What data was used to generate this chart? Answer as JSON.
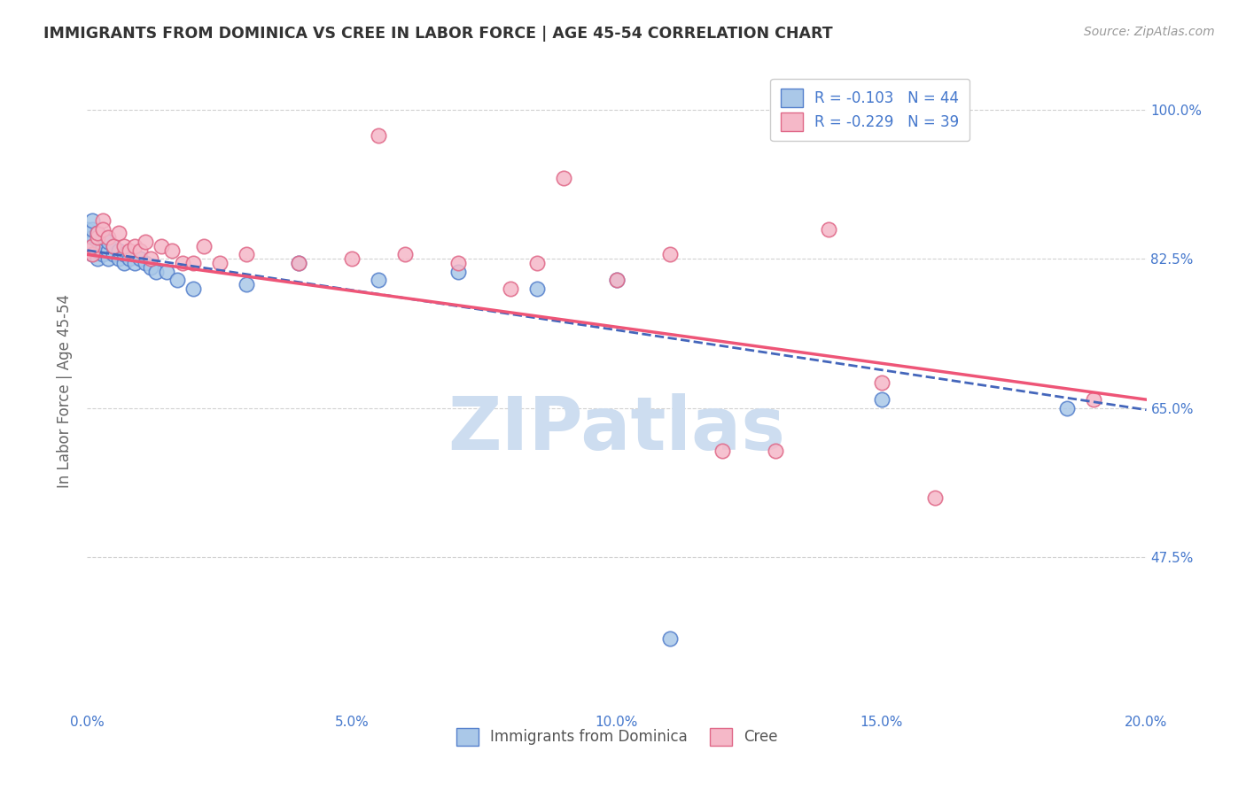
{
  "title": "IMMIGRANTS FROM DOMINICA VS CREE IN LABOR FORCE | AGE 45-54 CORRELATION CHART",
  "source": "Source: ZipAtlas.com",
  "ylabel": "In Labor Force | Age 45-54",
  "xmin": 0.0,
  "xmax": 0.2,
  "ymin": 0.295,
  "ymax": 1.045,
  "yticks": [
    0.475,
    0.65,
    0.825,
    1.0
  ],
  "ytick_labels": [
    "47.5%",
    "65.0%",
    "82.5%",
    "100.0%"
  ],
  "xticks": [
    0.0,
    0.05,
    0.1,
    0.15,
    0.2
  ],
  "xtick_labels": [
    "0.0%",
    "5.0%",
    "10.0%",
    "15.0%",
    "20.0%"
  ],
  "legend_labels_bottom": [
    "Immigrants from Dominica",
    "Cree"
  ],
  "dominica_color": "#aac8e8",
  "dominica_edge": "#5580cc",
  "cree_color": "#f5b8c8",
  "cree_edge": "#e06888",
  "dominica_line_color": "#4466bb",
  "cree_line_color": "#ee5577",
  "dominica_R": -0.103,
  "dominica_N": 44,
  "cree_R": -0.229,
  "cree_N": 39,
  "dom_line_x0": 0.0,
  "dom_line_y0": 0.835,
  "dom_line_x1": 0.2,
  "dom_line_y1": 0.648,
  "cree_line_x0": 0.0,
  "cree_line_y0": 0.83,
  "cree_line_x1": 0.2,
  "cree_line_y1": 0.66,
  "dominica_x": [
    0.0,
    0.0,
    0.0,
    0.0,
    0.0,
    0.001,
    0.001,
    0.001,
    0.001,
    0.001,
    0.002,
    0.002,
    0.002,
    0.002,
    0.003,
    0.003,
    0.003,
    0.004,
    0.004,
    0.004,
    0.005,
    0.005,
    0.006,
    0.006,
    0.007,
    0.007,
    0.008,
    0.009,
    0.01,
    0.011,
    0.012,
    0.013,
    0.015,
    0.017,
    0.02,
    0.03,
    0.04,
    0.055,
    0.07,
    0.085,
    0.1,
    0.11,
    0.15,
    0.185
  ],
  "dominica_y": [
    0.835,
    0.84,
    0.845,
    0.855,
    0.86,
    0.83,
    0.84,
    0.85,
    0.86,
    0.87,
    0.825,
    0.835,
    0.845,
    0.855,
    0.83,
    0.84,
    0.85,
    0.825,
    0.835,
    0.845,
    0.83,
    0.84,
    0.825,
    0.835,
    0.82,
    0.83,
    0.825,
    0.82,
    0.825,
    0.82,
    0.815,
    0.81,
    0.81,
    0.8,
    0.79,
    0.795,
    0.82,
    0.8,
    0.81,
    0.79,
    0.8,
    0.38,
    0.66,
    0.65
  ],
  "cree_x": [
    0.0,
    0.001,
    0.001,
    0.002,
    0.002,
    0.003,
    0.003,
    0.004,
    0.005,
    0.006,
    0.007,
    0.008,
    0.009,
    0.01,
    0.011,
    0.012,
    0.014,
    0.016,
    0.018,
    0.02,
    0.022,
    0.025,
    0.03,
    0.04,
    0.05,
    0.055,
    0.06,
    0.07,
    0.08,
    0.085,
    0.09,
    0.1,
    0.11,
    0.12,
    0.13,
    0.14,
    0.15,
    0.16,
    0.19
  ],
  "cree_y": [
    0.835,
    0.83,
    0.84,
    0.85,
    0.855,
    0.87,
    0.86,
    0.85,
    0.84,
    0.855,
    0.84,
    0.835,
    0.84,
    0.835,
    0.845,
    0.825,
    0.84,
    0.835,
    0.82,
    0.82,
    0.84,
    0.82,
    0.83,
    0.82,
    0.825,
    0.97,
    0.83,
    0.82,
    0.79,
    0.82,
    0.92,
    0.8,
    0.83,
    0.6,
    0.6,
    0.86,
    0.68,
    0.545,
    0.66
  ],
  "background_color": "#ffffff",
  "grid_color": "#cccccc",
  "title_color": "#333333",
  "axis_tick_color": "#4477cc",
  "ylabel_color": "#666666",
  "watermark_text": "ZIPatlas",
  "watermark_color": "#cdddf0"
}
